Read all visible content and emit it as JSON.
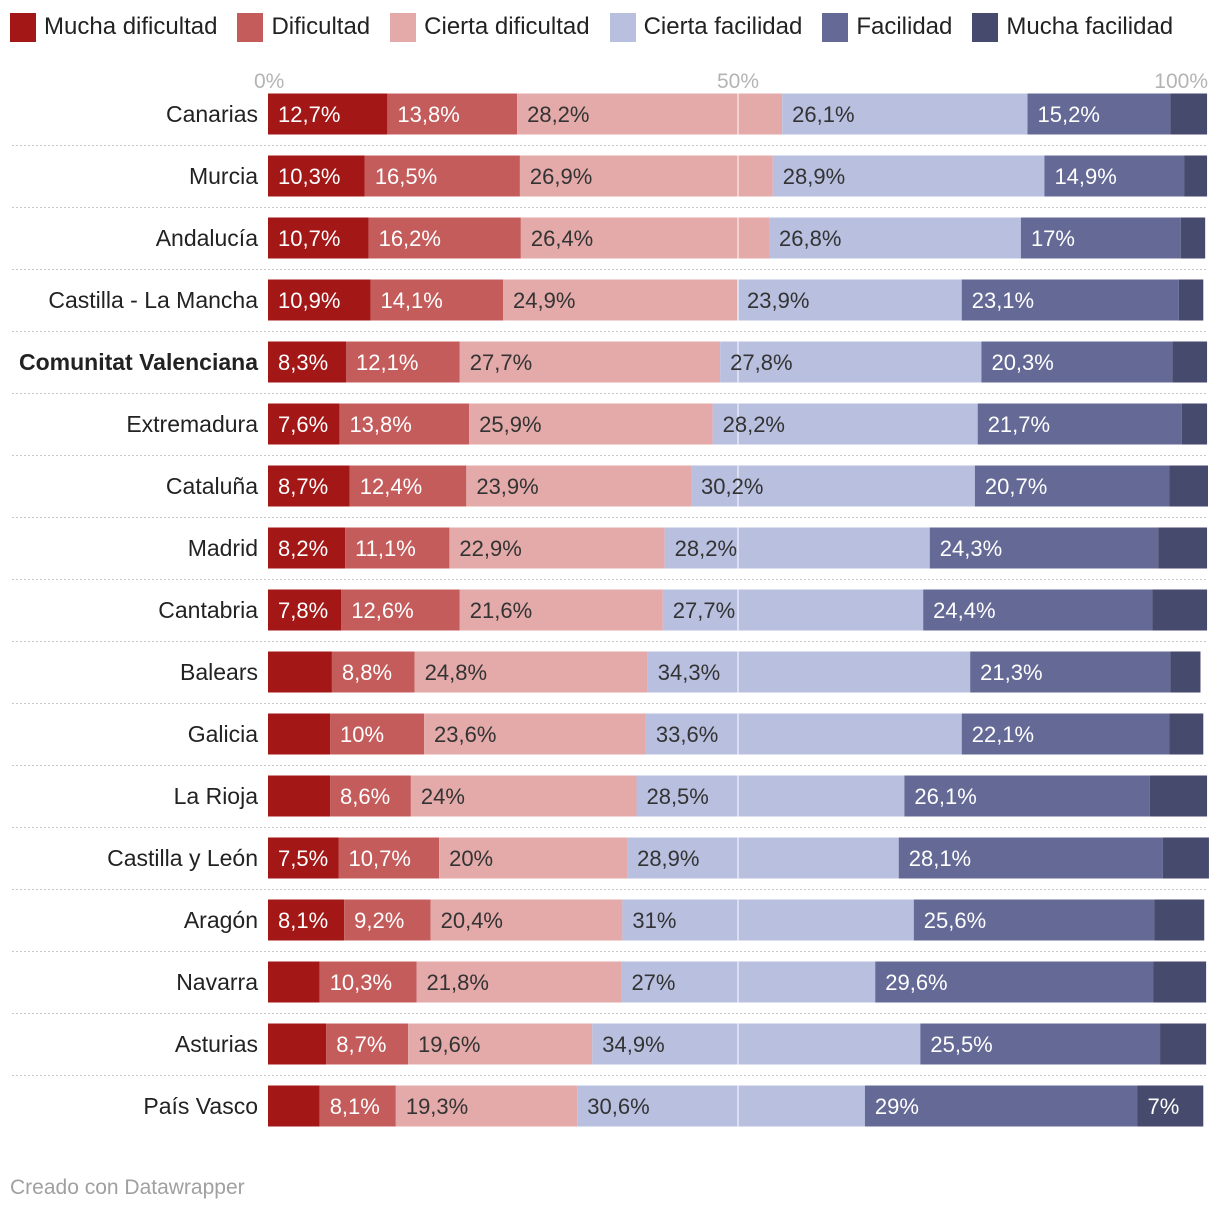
{
  "chart_data": {
    "type": "stacked-bar-horizontal",
    "axis": {
      "ticks": [
        "0%",
        "50%",
        "100%"
      ],
      "range": [
        0,
        100
      ],
      "grid": true
    },
    "series": [
      {
        "name": "Mucha dificultad",
        "color": "#a31717"
      },
      {
        "name": "Dificultad",
        "color": "#c45c5c"
      },
      {
        "name": "Cierta dificultad",
        "color": "#e4a9a9"
      },
      {
        "name": "Cierta facilidad",
        "color": "#b8bfdf"
      },
      {
        "name": "Facilidad",
        "color": "#646996"
      },
      {
        "name": "Mucha facilidad",
        "color": "#464a6c"
      }
    ],
    "rows": [
      {
        "region": "Canarias",
        "highlight": false,
        "values": [
          12.7,
          13.8,
          28.2,
          26.1,
          15.2,
          3.9
        ],
        "labels": [
          "12,7%",
          "13,8%",
          "28,2%",
          "26,1%",
          "15,2%",
          ""
        ]
      },
      {
        "region": "Murcia",
        "highlight": false,
        "values": [
          10.3,
          16.5,
          26.9,
          28.9,
          14.9,
          2.4
        ],
        "labels": [
          "10,3%",
          "16,5%",
          "26,9%",
          "28,9%",
          "14,9%",
          ""
        ]
      },
      {
        "region": "Andalucía",
        "highlight": false,
        "values": [
          10.7,
          16.2,
          26.4,
          26.8,
          17,
          2.6
        ],
        "labels": [
          "10,7%",
          "16,2%",
          "26,4%",
          "26,8%",
          "17%",
          ""
        ]
      },
      {
        "region": "Castilla - La Mancha",
        "highlight": false,
        "values": [
          10.9,
          14.1,
          24.9,
          23.9,
          23.1,
          2.6
        ],
        "labels": [
          "10,9%",
          "14,1%",
          "24,9%",
          "23,9%",
          "23,1%",
          ""
        ]
      },
      {
        "region": "Comunitat Valenciana",
        "highlight": true,
        "values": [
          8.3,
          12.1,
          27.7,
          27.8,
          20.3,
          3.7
        ],
        "labels": [
          "8,3%",
          "12,1%",
          "27,7%",
          "27,8%",
          "20,3%",
          ""
        ]
      },
      {
        "region": "Extremadura",
        "highlight": false,
        "values": [
          7.6,
          13.8,
          25.9,
          28.2,
          21.7,
          2.7
        ],
        "labels": [
          "7,6%",
          "13,8%",
          "25,9%",
          "28,2%",
          "21,7%",
          ""
        ]
      },
      {
        "region": "Cataluña",
        "highlight": false,
        "values": [
          8.7,
          12.4,
          23.9,
          30.2,
          20.7,
          4.1
        ],
        "labels": [
          "8,7%",
          "12,4%",
          "23,9%",
          "30,2%",
          "20,7%",
          ""
        ]
      },
      {
        "region": "Madrid",
        "highlight": false,
        "values": [
          8.2,
          11.1,
          22.9,
          28.2,
          24.3,
          5.2
        ],
        "labels": [
          "8,2%",
          "11,1%",
          "22,9%",
          "28,2%",
          "24,3%",
          ""
        ]
      },
      {
        "region": "Cantabria",
        "highlight": false,
        "values": [
          7.8,
          12.6,
          21.6,
          27.7,
          24.4,
          5.8
        ],
        "labels": [
          "7,8%",
          "12,6%",
          "21,6%",
          "27,7%",
          "24,4%",
          ""
        ]
      },
      {
        "region": "Balears",
        "highlight": false,
        "values": [
          6.8,
          8.8,
          24.8,
          34.3,
          21.3,
          3.2
        ],
        "labels": [
          "",
          "8,8%",
          "24,8%",
          "34,3%",
          "21,3%",
          ""
        ]
      },
      {
        "region": "Galicia",
        "highlight": false,
        "values": [
          6.6,
          10,
          23.6,
          33.6,
          22.1,
          3.6
        ],
        "labels": [
          "",
          "10%",
          "23,6%",
          "33,6%",
          "22,1%",
          ""
        ]
      },
      {
        "region": "La Rioja",
        "highlight": false,
        "values": [
          6.6,
          8.6,
          24,
          28.5,
          26.1,
          6.1
        ],
        "labels": [
          "",
          "8,6%",
          "24%",
          "28,5%",
          "26,1%",
          ""
        ]
      },
      {
        "region": "Castilla y León",
        "highlight": false,
        "values": [
          7.5,
          10.7,
          20,
          28.9,
          28.1,
          4.9
        ],
        "labels": [
          "7,5%",
          "10,7%",
          "20%",
          "28,9%",
          "28,1%",
          ""
        ]
      },
      {
        "region": "Aragón",
        "highlight": false,
        "values": [
          8.1,
          9.2,
          20.4,
          31,
          25.6,
          5.3
        ],
        "labels": [
          "8,1%",
          "9,2%",
          "20,4%",
          "31%",
          "25,6%",
          ""
        ]
      },
      {
        "region": "Navarra",
        "highlight": false,
        "values": [
          5.5,
          10.3,
          21.8,
          27,
          29.6,
          5.6
        ],
        "labels": [
          "",
          "10,3%",
          "21,8%",
          "27%",
          "29,6%",
          ""
        ]
      },
      {
        "region": "Asturias",
        "highlight": false,
        "values": [
          6.2,
          8.7,
          19.6,
          34.9,
          25.5,
          4.9
        ],
        "labels": [
          "",
          "8,7%",
          "19,6%",
          "34,9%",
          "25,5%",
          ""
        ]
      },
      {
        "region": "País Vasco",
        "highlight": false,
        "values": [
          5.5,
          8.1,
          19.3,
          30.6,
          29,
          7
        ],
        "labels": [
          "",
          "8,1%",
          "19,3%",
          "30,6%",
          "29%",
          "7%"
        ]
      }
    ]
  },
  "footer": {
    "credit": "Creado con Datawrapper"
  }
}
